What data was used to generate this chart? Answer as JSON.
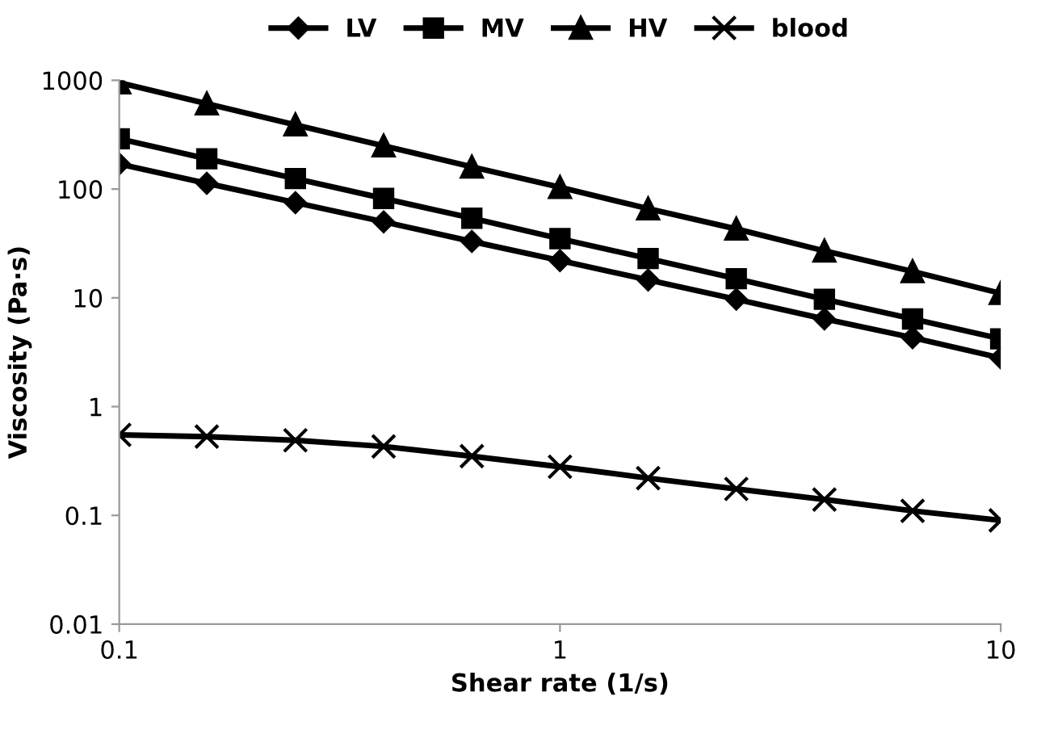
{
  "chart_data": {
    "type": "line",
    "xlabel": "Shear rate (1/s)",
    "ylabel": "Viscosity (Pa·s)",
    "x": [
      0.1,
      0.158,
      0.251,
      0.398,
      0.631,
      1,
      1.585,
      2.512,
      3.981,
      6.31,
      10
    ],
    "series": [
      {
        "name": "LV",
        "color": "#000000",
        "marker": "diamond",
        "values": [
          170,
          113,
          75,
          50,
          33,
          22,
          14.6,
          9.7,
          6.4,
          4.3,
          2.8
        ]
      },
      {
        "name": "MV",
        "color": "#000000",
        "marker": "square",
        "values": [
          290,
          190,
          125,
          82,
          54,
          35,
          23,
          15,
          9.7,
          6.4,
          4.2
        ]
      },
      {
        "name": "HV",
        "color": "#000000",
        "marker": "triangle",
        "values": [
          950,
          610,
          390,
          250,
          160,
          104,
          66,
          43,
          27,
          17.5,
          11
        ]
      },
      {
        "name": "blood",
        "color": "#000000",
        "marker": "cross",
        "values": [
          0.55,
          0.53,
          0.49,
          0.43,
          0.35,
          0.28,
          0.22,
          0.175,
          0.14,
          0.11,
          0.09
        ]
      }
    ],
    "log": "xy",
    "xlim": [
      0.1,
      10
    ],
    "xticks": [
      0.1,
      1,
      10
    ],
    "ylim": [
      0.01,
      1000
    ],
    "yticks": [
      0.01,
      0.1,
      1,
      10,
      100,
      1000
    ],
    "grid": false,
    "legend": "top",
    "line_style": "solid"
  }
}
